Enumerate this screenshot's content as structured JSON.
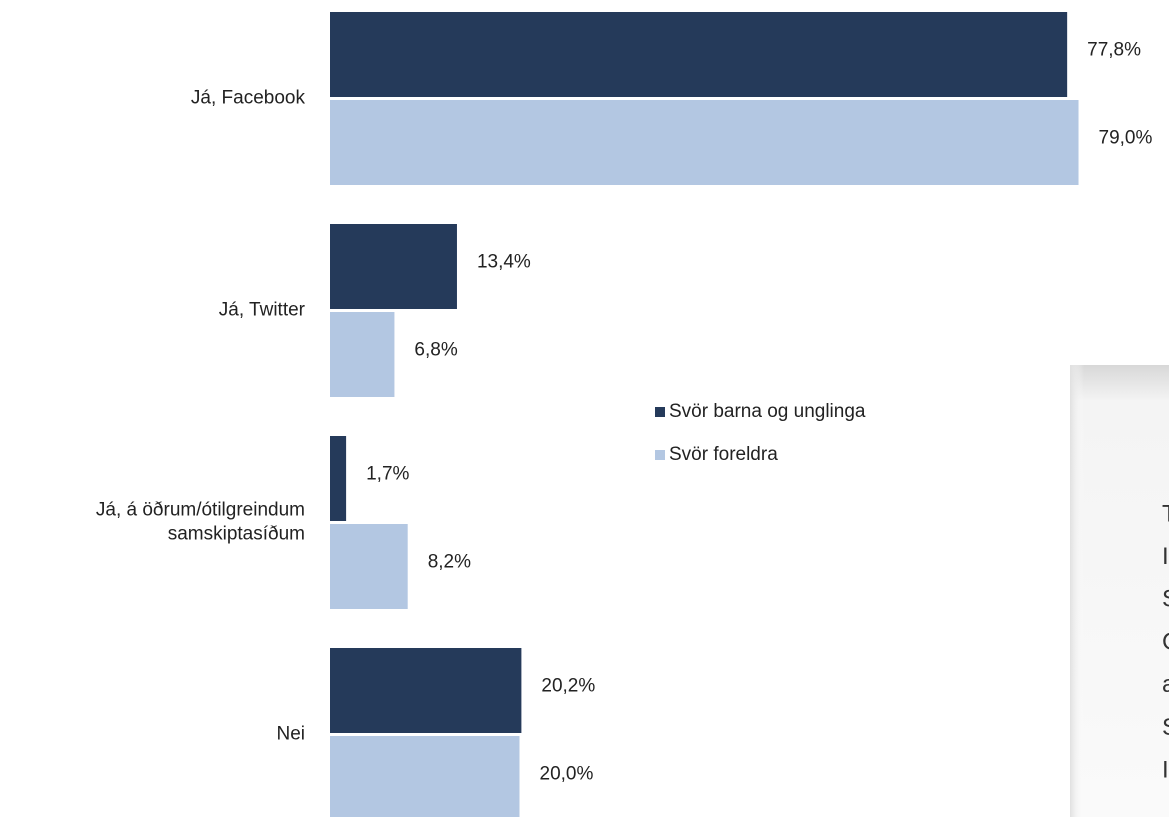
{
  "chart_data": {
    "type": "barh",
    "categories": [
      "Já, Facebook",
      "Já, Twitter",
      "Já, á öðrum/ótilgreindum\nsamskiptasíðum",
      "Nei"
    ],
    "series": [
      {
        "name": "Svör barna og unglinga",
        "color": "#253a5a",
        "values": [
          77.8,
          13.4,
          1.7,
          20.2
        ],
        "value_labels": [
          "77,8%",
          "13,4%",
          "1,7%",
          "20,2%"
        ]
      },
      {
        "name": "Svör foreldra",
        "color": "#b3c7e2",
        "values": [
          79.0,
          6.8,
          8.2,
          20.0
        ],
        "value_labels": [
          "79,0%",
          "6,8%",
          "8,2%",
          "20,0%"
        ]
      }
    ],
    "xlim": [
      0,
      80
    ],
    "legend": "center"
  },
  "side_panel": {
    "lines": [
      "T",
      "I",
      "S",
      "C",
      "a",
      "S",
      "I"
    ]
  }
}
